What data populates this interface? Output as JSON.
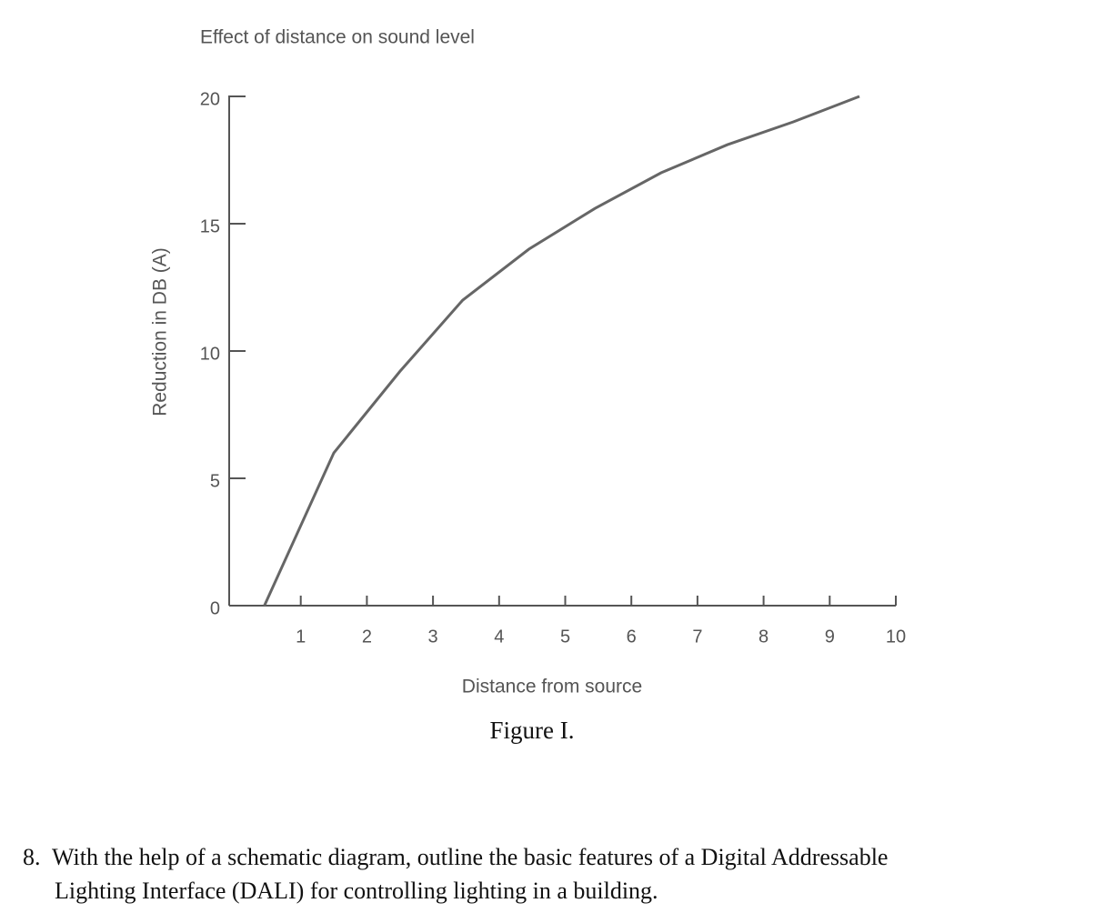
{
  "chart_data": {
    "type": "line",
    "title": "Effect of distance on sound level",
    "x_label": "Distance from source",
    "y_label": "Reduction in DB (A)",
    "x": [
      0.45,
      1.5,
      2.5,
      3.45,
      4.45,
      5.45,
      6.45,
      7.45,
      8.45,
      9.45
    ],
    "values": [
      0,
      6,
      9.2,
      12,
      14,
      15.6,
      17,
      18.1,
      19,
      20
    ],
    "color": "#666666",
    "xlim": [
      0,
      10
    ],
    "xticks": [
      1,
      2,
      3,
      4,
      5,
      6,
      7,
      8,
      9,
      10
    ],
    "ylim": [
      0,
      20
    ],
    "yticks": [
      0,
      5,
      10,
      15,
      20
    ],
    "grid": false
  },
  "caption": "Figure I.",
  "question": {
    "number": "8.",
    "lines": [
      "With the help of a schematic diagram, outline the basic features of a Digital Addressable",
      "Lighting Interface (DALI) for controlling lighting in a building."
    ]
  }
}
